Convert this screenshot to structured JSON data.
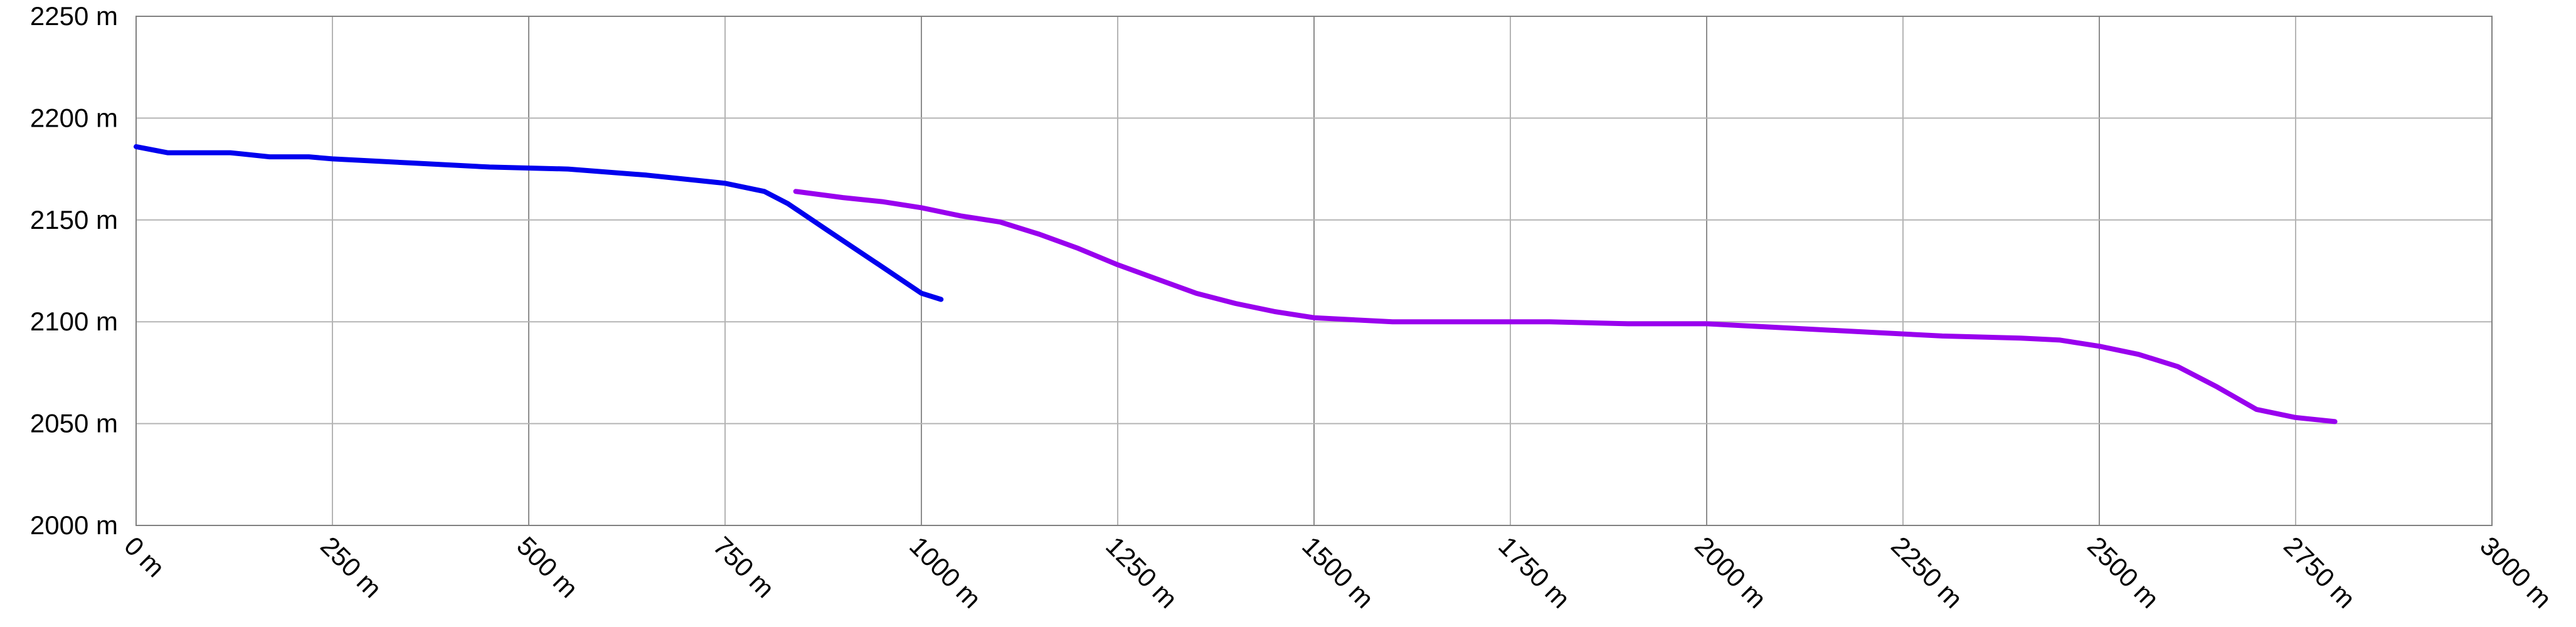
{
  "chart_data": {
    "type": "line",
    "title": "",
    "xlabel": "",
    "ylabel": "",
    "xlim": [
      0,
      3000
    ],
    "ylim": [
      2000,
      2250
    ],
    "x_ticks": [
      0,
      250,
      500,
      750,
      1000,
      1250,
      1500,
      1750,
      2000,
      2250,
      2500,
      2750,
      3000
    ],
    "x_tick_labels": [
      "0 m",
      "250 m",
      "500 m",
      "750 m",
      "1000 m",
      "1250 m",
      "1500 m",
      "1750 m",
      "2000 m",
      "2250 m",
      "2500 m",
      "2750 m",
      "3000 m"
    ],
    "y_ticks": [
      2000,
      2050,
      2100,
      2150,
      2200,
      2250
    ],
    "y_tick_labels": [
      "2000 m",
      "2050 m",
      "2100 m",
      "2150 m",
      "2200 m",
      "2250 m"
    ],
    "grid": true,
    "legend": "none",
    "series": [
      {
        "color": "#0000ee",
        "x": [
          0,
          40,
          120,
          170,
          220,
          250,
          350,
          450,
          550,
          650,
          750,
          800,
          830,
          880,
          950,
          1000,
          1025
        ],
        "y": [
          2186,
          2183,
          2183,
          2181,
          2181,
          2180,
          2178,
          2176,
          2175,
          2172,
          2168,
          2164,
          2158,
          2145,
          2127,
          2114,
          2111
        ]
      },
      {
        "color": "#9900ee",
        "x": [
          840,
          900,
          950,
          1000,
          1050,
          1100,
          1150,
          1200,
          1250,
          1300,
          1350,
          1400,
          1450,
          1500,
          1550,
          1600,
          1700,
          1800,
          1900,
          2000,
          2100,
          2200,
          2300,
          2400,
          2450,
          2500,
          2550,
          2600,
          2650,
          2700,
          2750,
          2800
        ],
        "y": [
          2164,
          2161,
          2159,
          2156,
          2152,
          2149,
          2143,
          2136,
          2128,
          2121,
          2114,
          2109,
          2105,
          2102,
          2101,
          2100,
          2100,
          2100,
          2099,
          2099,
          2097,
          2095,
          2093,
          2092,
          2091,
          2088,
          2084,
          2078,
          2068,
          2057,
          2053,
          2051
        ]
      }
    ]
  }
}
